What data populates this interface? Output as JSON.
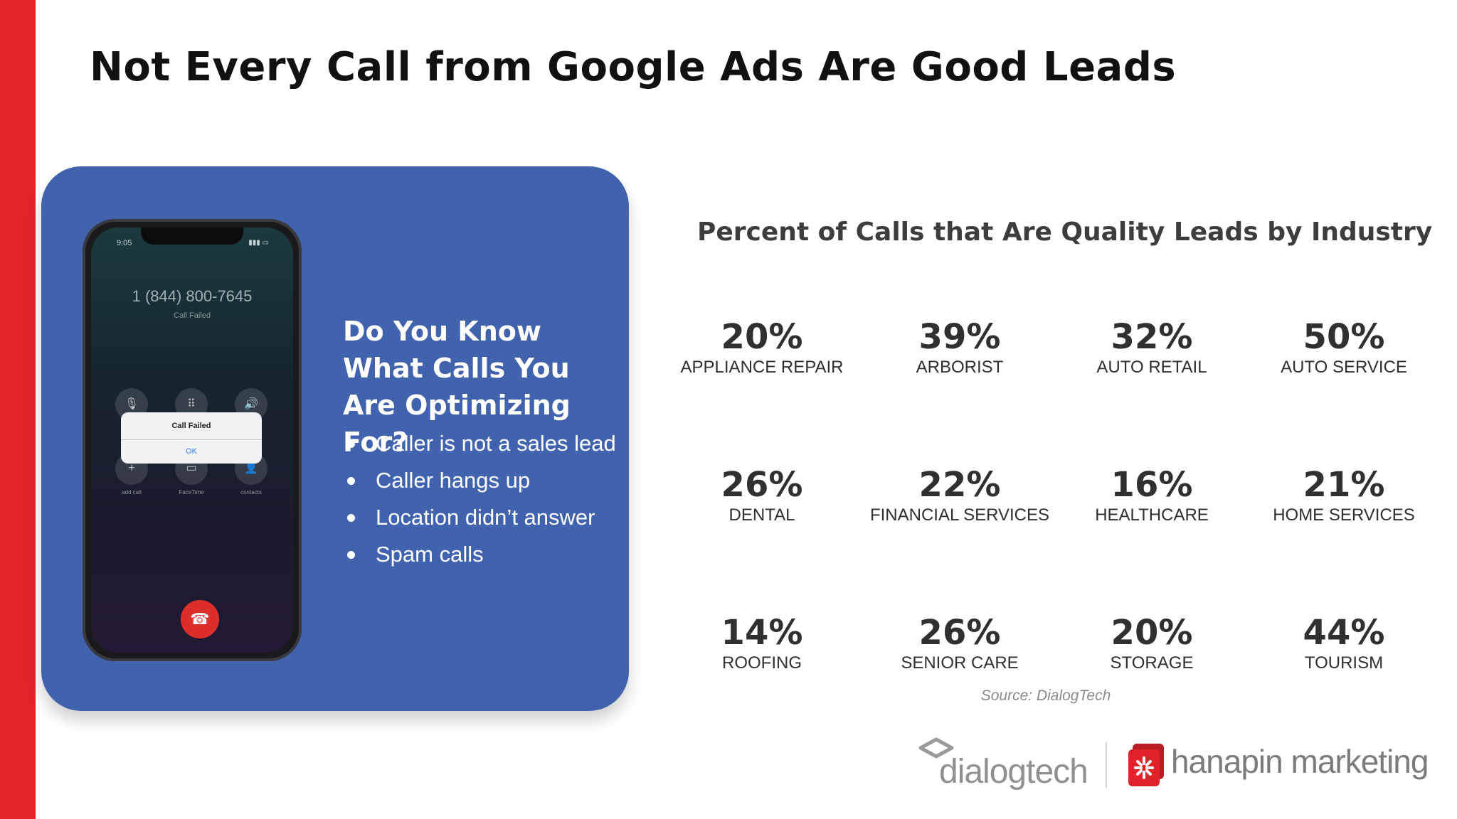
{
  "title": "Not Every Call from Google Ads Are Good Leads",
  "colors": {
    "accent_bar": "#e3242b",
    "card": "#4162ac",
    "hangup": "#dd2f2a",
    "logo_red": "#e0232a"
  },
  "phone": {
    "time": "9:05",
    "number": "1 (844) 800-7645",
    "status": "Call Failed",
    "dialog_title": "Call Failed",
    "dialog_ok": "OK",
    "buttons": [
      {
        "icon": "mute-icon",
        "glyph": "🎙"
      },
      {
        "icon": "keypad-icon",
        "glyph": "⠿"
      },
      {
        "icon": "speaker-icon",
        "glyph": "🔊"
      },
      {
        "icon": "add-call-icon",
        "glyph": "+",
        "label": "add call"
      },
      {
        "icon": "facetime-icon",
        "glyph": "▭",
        "label": "FaceTime"
      },
      {
        "icon": "contacts-icon",
        "glyph": "👤",
        "label": "contacts"
      }
    ]
  },
  "card": {
    "heading": "Do You Know What Calls You Are Optimizing For?",
    "bullets": [
      "Caller is not a sales lead",
      "Caller hangs up",
      "Location didn’t answer",
      "Spam calls"
    ]
  },
  "stats_title": "Percent of Calls that Are Quality Leads by Industry",
  "stats": [
    {
      "value": "20%",
      "label": "APPLIANCE REPAIR"
    },
    {
      "value": "39%",
      "label": "ARBORIST"
    },
    {
      "value": "32%",
      "label": "AUTO RETAIL"
    },
    {
      "value": "50%",
      "label": "AUTO SERVICE"
    },
    {
      "value": "26%",
      "label": "DENTAL"
    },
    {
      "value": "22%",
      "label": "FINANCIAL SERVICES"
    },
    {
      "value": "16%",
      "label": "HEALTHCARE"
    },
    {
      "value": "21%",
      "label": "HOME SERVICES"
    },
    {
      "value": "14%",
      "label": "ROOFING"
    },
    {
      "value": "26%",
      "label": "SENIOR CARE"
    },
    {
      "value": "20%",
      "label": "STORAGE"
    },
    {
      "value": "44%",
      "label": "TOURISM"
    }
  ],
  "source": "Source: DialogTech",
  "logos": {
    "dialogtech": "dialogtech",
    "hanapin": "hanapin marketing"
  }
}
